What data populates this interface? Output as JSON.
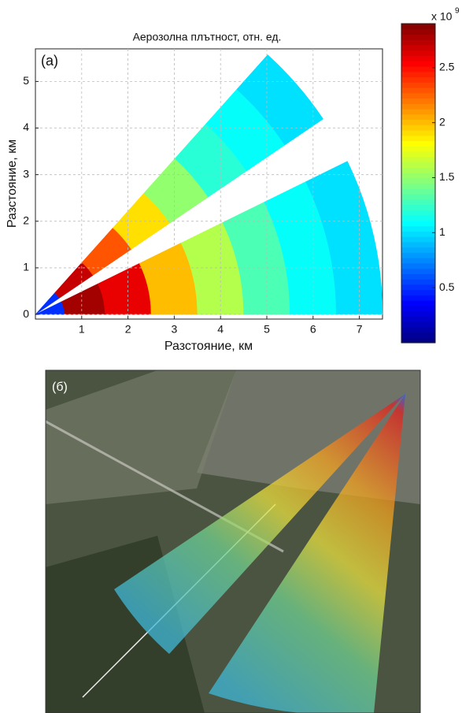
{
  "chart_data": {
    "type": "sector",
    "title": "Аерозолна плътност, отн. ед.",
    "panel_label": "(а)",
    "x_label": "Разстояние, км",
    "y_label": "Разстояние, км",
    "xlim": [
      0,
      7.5
    ],
    "ylim": [
      -0.1,
      5.7
    ],
    "xticks": [
      1,
      2,
      3,
      4,
      5,
      6,
      7
    ],
    "yticks": [
      0,
      1,
      2,
      3,
      4,
      5
    ],
    "grid": true,
    "colormap": "jet",
    "clim": [
      0,
      2.9
    ],
    "colorbar_ticks": [
      0.5,
      1,
      1.5,
      2,
      2.5
    ],
    "colorbar_multiplier": {
      "base": "x 10",
      "exponent": "9"
    },
    "range_km": [
      0.25,
      1,
      2,
      3,
      4,
      5,
      6,
      7,
      7.5
    ],
    "sectors": [
      {
        "angle_from": 34,
        "angle_to": 48,
        "values": [
          0.5,
          2.7,
          2.3,
          1.9,
          1.5,
          1.2,
          1.1,
          1.0,
          1.0
        ]
      },
      {
        "angle_from": 0,
        "angle_to": 26,
        "values": [
          0.5,
          2.8,
          2.6,
          2.0,
          1.6,
          1.3,
          1.1,
          1.0,
          1.0
        ]
      }
    ]
  },
  "map_panel": {
    "label": "(б)"
  }
}
